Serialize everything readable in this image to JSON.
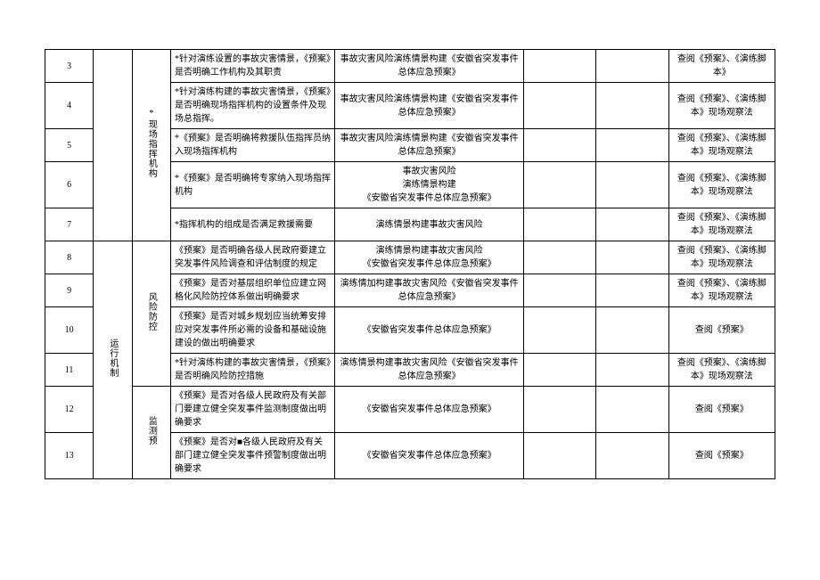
{
  "table": {
    "font_size": 10,
    "line_height": 1.5,
    "border_color": "#000000",
    "rows": [
      {
        "num": "3",
        "cat2": "*现场指挥机构",
        "text1": "*针对演练设置的事故灾害情景，《预案》是否明确工作机构及其职责",
        "text2": "事故灾害风险演练情景构建《安徽省突发事件总体应急预案》",
        "text3": "查阅《预案》、《演练脚本》"
      },
      {
        "num": "4",
        "text1": "*针对演练构建的事故灾害情景，《预案》是否明确现场指挥机构的设置条件及现场总指挥。",
        "text2": "事故灾害风险演练情景构建《安徽省突发事件总体应急预案》",
        "text3": "查阅《预案》、《演练脚本》现场观察法"
      },
      {
        "num": "5",
        "text1": "*《预案》是否明确将救援队伍指挥员纳入现场指挥机构",
        "text2": "事故灾害风险演练情景构建《安徽省突发事件总体应急预案》",
        "text3": "查阅《预案》、《演练脚本》现场观察法"
      },
      {
        "num": "6",
        "text1": "*《预案》是否明确将专家纳入现场指挥机构",
        "text2": "事故灾害风险\n演练情景构建\n《安徽省突发事件总体应急预案》",
        "text3": "查阅《预案》、《演练脚本》现场观察法"
      },
      {
        "num": "7",
        "text1": "*指挥机构的组成是否满足救援需要",
        "text2": "演练情景构建事故灾害风险",
        "text3": "查阅《预案》、《演练脚本》现场观察法"
      },
      {
        "num": "8",
        "cat1": "运行机制",
        "cat2": "风险防控",
        "text1": "《预案》是否明确各级人民政府要建立突发事件风险调查和评估制度的规定",
        "text2": "演练情景构建事故灾害风险\n《安徽省突发事件总体应急预案》",
        "text3": "查阅《预案》、《演练脚本》现场观察法"
      },
      {
        "num": "9",
        "text1": "《预案》是否对基层组织单位应建立网格化风险防控体系做出明确要求",
        "text2": "演练情加构建事故灾害风险《安徽省突发事件总体应急预案》",
        "text3": "查阅《预案》、《演练脚本》现场观察法"
      },
      {
        "num": "10",
        "text1": "《预案》是否对城乡规划应当统筹安排应对突发事件所必需的设备和基础设施建设的做出明确要求",
        "text2": "《安徽省突发事件总体应急预案》",
        "text3": "查阅《预案》"
      },
      {
        "num": "11",
        "text1": "*针对演练构建的事故灾害情景，《预案》是否明确风险防控措施",
        "text2": "演练情景构建事故灾害风险《安徽省突发事件总体应急预案》",
        "text3": "查阅《预案》、《演练脚本》现场观察法"
      },
      {
        "num": "12",
        "cat2": "监测预",
        "text1": "《预案》是否对各级人民政府及有关部门要建立健全突发事件监测制度做出明确要求",
        "text2": "《安徽省突发事件总体应急预案》",
        "text3": "查阅《预案》"
      },
      {
        "num": "13",
        "text1": "《预案》是否对■各级人民政府及有关部门建立健全突发事件预警制度做出明确要求",
        "text2": "《安徽省突发事件总体应急预案》",
        "text3": "查阅《预案》"
      }
    ]
  }
}
